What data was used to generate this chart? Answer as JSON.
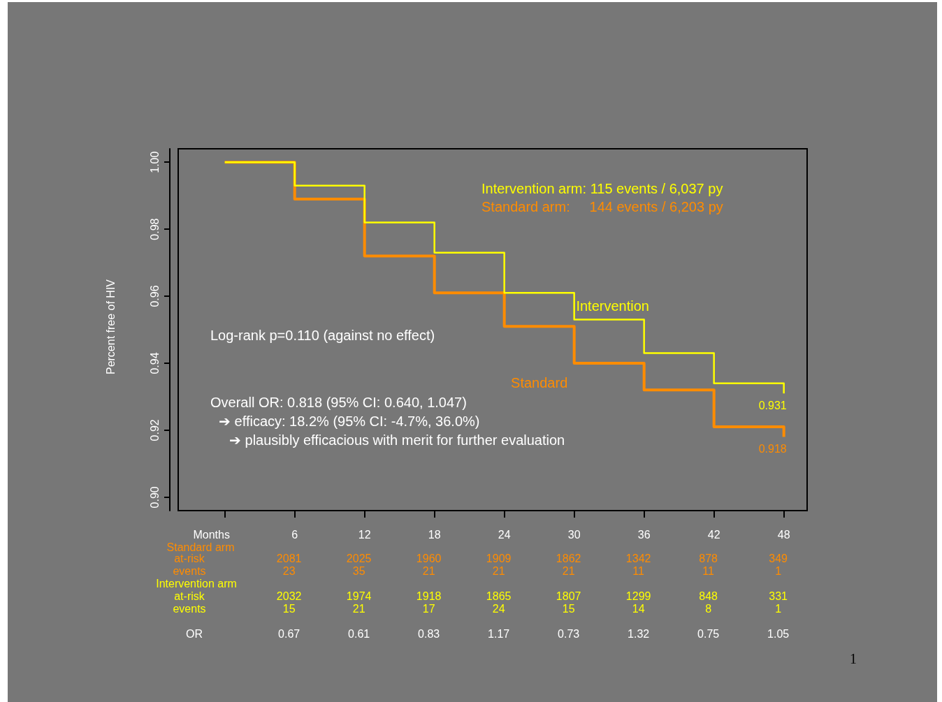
{
  "chart_data": {
    "type": "step",
    "xlabel": "Months",
    "ylabel": "Percent free of HIV",
    "x": [
      0,
      6,
      12,
      18,
      24,
      30,
      36,
      42,
      48
    ],
    "series": [
      {
        "name": "Intervention",
        "color": "#ffff00",
        "values": [
          1.0,
          0.993,
          0.982,
          0.973,
          0.961,
          0.953,
          0.943,
          0.934,
          0.931
        ],
        "value_labels": [
          null,
          null,
          null,
          null,
          null,
          null,
          null,
          null,
          "0.931"
        ]
      },
      {
        "name": "Standard",
        "color": "#ff8c00",
        "values": [
          1.0,
          0.989,
          0.972,
          0.961,
          0.951,
          0.94,
          0.932,
          0.921,
          0.918
        ],
        "value_labels": [
          null,
          null,
          null,
          null,
          null,
          null,
          null,
          null,
          "0.918"
        ]
      }
    ],
    "xlim": [
      -4,
      50
    ],
    "xticks": [
      {
        "value": 0,
        "label": null
      },
      6,
      12,
      18,
      24,
      30,
      36,
      42,
      48
    ],
    "ylim": [
      0.896,
      1.004
    ],
    "yticks": [
      {
        "value": 0.9,
        "label": "0.90"
      },
      0.92,
      0.94,
      0.96,
      0.98,
      {
        "value": 1.0,
        "label": "1.00"
      }
    ],
    "grid": false,
    "legend": false,
    "marker": "none",
    "line_style": "solid",
    "annotations": [
      "Intervention arm: 115 events / 6,037 py",
      "Standard arm:     144 events / 6,203 py",
      "Log-rank p=0.110 (against no effect)",
      "Overall OR: 0.818 (95% CI: 0.640, 1.047)",
      "➔ efficacy: 18.2% (95% CI: -4.7%, 36.0%)",
      "➔ plausibly efficacious with merit for further evaluation",
      "1",
      "Standard arm",
      "at-risk",
      "2081",
      "2025",
      "1960",
      "1909",
      "1862",
      "1342",
      "878",
      "349",
      "events",
      "23",
      "35",
      "21",
      "21",
      "21",
      "11",
      "11",
      "1",
      "Intervention arm",
      "at-risk",
      "2032",
      "1974",
      "1918",
      "1865",
      "1807",
      "1299",
      "848",
      "331",
      "events",
      "15",
      "21",
      "17",
      "24",
      "15",
      "14",
      "8",
      "1",
      "OR",
      "0.67",
      "0.61",
      "0.83",
      "1.17",
      "0.73",
      "1.32",
      "0.75",
      "1.05"
    ]
  }
}
